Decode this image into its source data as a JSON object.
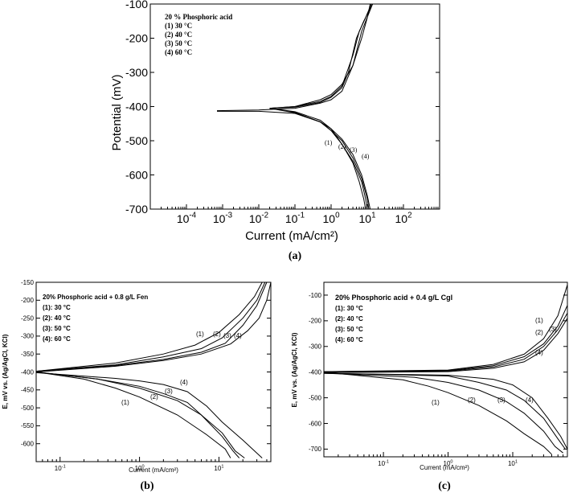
{
  "chart_data": [
    {
      "panel": "(a)",
      "type": "line",
      "xlabel": "Current (mA/cm²)",
      "ylabel": "Potential (mV)",
      "xscale": "log",
      "xlim": [
        1e-05,
        1000
      ],
      "ylim": [
        -700,
        -100
      ],
      "x_ticks": [
        {
          "v": -4,
          "base": "10",
          "exp": "-4"
        },
        {
          "v": -3,
          "base": "10",
          "exp": "-3"
        },
        {
          "v": -2,
          "base": "10",
          "exp": "-2"
        },
        {
          "v": -1,
          "base": "10",
          "exp": "-1"
        },
        {
          "v": 0,
          "base": "10",
          "exp": "0"
        },
        {
          "v": 1,
          "base": "10",
          "exp": "1"
        },
        {
          "v": 2,
          "base": "10",
          "exp": "2"
        }
      ],
      "y_ticks": [
        "-100",
        "-200",
        "-300",
        "-400",
        "-500",
        "-600",
        "-700"
      ],
      "legend": [
        "20 % Phosphoric acid",
        "(1) 30 °C",
        "(2) 40 °C",
        "(3) 50 °C",
        "(4) 60 °C"
      ],
      "legend_position": "top-left",
      "curve_labels": [
        "(1)",
        "(2)",
        "(3)",
        "(4)"
      ],
      "series": [
        {
          "anodic": [
            [
              0.02,
              -405
            ],
            [
              0.1,
              -400
            ],
            [
              0.5,
              -380
            ],
            [
              1,
              -365
            ],
            [
              2,
              -335
            ],
            [
              4,
              -280
            ],
            [
              7,
              -200
            ],
            [
              10,
              -140
            ],
            [
              12,
              -100
            ]
          ],
          "cathodic": [
            [
              0.02,
              -405
            ],
            [
              0.1,
              -415
            ],
            [
              0.5,
              -440
            ],
            [
              1,
              -465
            ],
            [
              2,
              -510
            ],
            [
              4,
              -565
            ],
            [
              6,
              -620
            ],
            [
              8,
              -670
            ],
            [
              9,
              -700
            ]
          ]
        },
        {
          "anodic": [
            [
              0.02,
              -405
            ],
            [
              0.1,
              -400
            ],
            [
              0.5,
              -385
            ],
            [
              1,
              -370
            ],
            [
              2,
              -340
            ],
            [
              4,
              -250
            ],
            [
              6,
              -180
            ],
            [
              9,
              -140
            ],
            [
              13,
              -100
            ]
          ],
          "cathodic": [
            [
              0.02,
              -405
            ],
            [
              0.1,
              -417
            ],
            [
              0.5,
              -445
            ],
            [
              1,
              -470
            ],
            [
              2,
              -510
            ],
            [
              4,
              -560
            ],
            [
              7,
              -620
            ],
            [
              9,
              -670
            ],
            [
              10,
              -700
            ]
          ]
        },
        {
          "anodic": [
            [
              0.02,
              -405
            ],
            [
              0.1,
              -402
            ],
            [
              0.5,
              -388
            ],
            [
              1,
              -373
            ],
            [
              2,
              -345
            ],
            [
              3,
              -300
            ],
            [
              5,
              -200
            ],
            [
              8,
              -150
            ],
            [
              14,
              -100
            ]
          ],
          "cathodic": [
            [
              0.02,
              -405
            ],
            [
              0.1,
              -418
            ],
            [
              0.5,
              -445
            ],
            [
              1,
              -470
            ],
            [
              2,
              -500
            ],
            [
              4,
              -550
            ],
            [
              7,
              -610
            ],
            [
              10,
              -670
            ],
            [
              11,
              -700
            ]
          ]
        },
        {
          "anodic": [
            [
              0.0007,
              -412
            ],
            [
              0.01,
              -410
            ],
            [
              0.1,
              -405
            ],
            [
              0.5,
              -390
            ],
            [
              1,
              -380
            ],
            [
              2,
              -355
            ],
            [
              4,
              -280
            ],
            [
              7,
              -180
            ],
            [
              14,
              -100
            ]
          ],
          "cathodic": [
            [
              0.0007,
              -414
            ],
            [
              0.01,
              -414
            ],
            [
              0.1,
              -420
            ],
            [
              0.5,
              -445
            ],
            [
              1,
              -465
            ],
            [
              2,
              -495
            ],
            [
              4,
              -540
            ],
            [
              7,
              -600
            ],
            [
              10,
              -660
            ],
            [
              12,
              -700
            ]
          ]
        }
      ]
    },
    {
      "panel": "(b)",
      "type": "line",
      "xlabel": "Current (mA/cm²)",
      "ylabel": "E, mV vs. (Ag/AgCl, KCl)",
      "xscale": "log",
      "xlim": [
        0.05,
        45
      ],
      "ylim": [
        -650,
        -150
      ],
      "x_ticks": [
        {
          "v": -1,
          "base": "10",
          "exp": "-1"
        },
        {
          "v": 0,
          "base": "10",
          "exp": "0"
        },
        {
          "v": 1,
          "base": "10",
          "exp": "1"
        }
      ],
      "y_ticks": [
        "-150",
        "-200",
        "-250",
        "-300",
        "-350",
        "-400",
        "-450",
        "-500",
        "-550",
        "-600"
      ],
      "legend": [
        "20% Phosphoric acid + 0.8 g/L Fen",
        "(1): 30 °C",
        "(2): 40 °C",
        "(3): 50 °C",
        "(4): 60 °C"
      ],
      "legend_position": "top-left",
      "curve_labels": [
        "(1)",
        "(2)",
        "(3)",
        "(4)"
      ],
      "series": [
        {
          "anodic": [
            [
              0.05,
              -398
            ],
            [
              0.5,
              -375
            ],
            [
              2,
              -350
            ],
            [
              5,
              -325
            ],
            [
              10,
              -290
            ],
            [
              18,
              -240
            ],
            [
              28,
              -190
            ],
            [
              35,
              -150
            ]
          ],
          "cathodic": [
            [
              0.05,
              -400
            ],
            [
              0.2,
              -420
            ],
            [
              0.5,
              -445
            ],
            [
              1,
              -470
            ],
            [
              3,
              -520
            ],
            [
              7,
              -575
            ],
            [
              12,
              -615
            ],
            [
              14,
              -640
            ]
          ]
        },
        {
          "anodic": [
            [
              0.05,
              -398
            ],
            [
              0.5,
              -380
            ],
            [
              2,
              -358
            ],
            [
              6,
              -335
            ],
            [
              11,
              -305
            ],
            [
              20,
              -250
            ],
            [
              30,
              -200
            ],
            [
              38,
              -150
            ]
          ],
          "cathodic": [
            [
              0.05,
              -400
            ],
            [
              0.3,
              -420
            ],
            [
              1,
              -445
            ],
            [
              3,
              -480
            ],
            [
              6,
              -520
            ],
            [
              11,
              -580
            ],
            [
              15,
              -620
            ],
            [
              18,
              -640
            ]
          ]
        },
        {
          "anodic": [
            [
              0.05,
              -398
            ],
            [
              0.5,
              -382
            ],
            [
              2,
              -365
            ],
            [
              6,
              -345
            ],
            [
              12,
              -320
            ],
            [
              20,
              -270
            ],
            [
              30,
              -215
            ],
            [
              40,
              -150
            ]
          ],
          "cathodic": [
            [
              0.05,
              -400
            ],
            [
              0.3,
              -420
            ],
            [
              1,
              -440
            ],
            [
              2,
              -460
            ],
            [
              4,
              -485
            ],
            [
              6,
              -520
            ],
            [
              11,
              -570
            ],
            [
              16,
              -620
            ],
            [
              21,
              -640
            ]
          ]
        },
        {
          "anodic": [
            [
              0.05,
              -400
            ],
            [
              0.5,
              -384
            ],
            [
              2,
              -368
            ],
            [
              6,
              -350
            ],
            [
              14,
              -322
            ],
            [
              23,
              -285
            ],
            [
              32,
              -250
            ],
            [
              40,
              -200
            ],
            [
              45,
              -150
            ]
          ],
          "cathodic": [
            [
              0.05,
              -402
            ],
            [
              0.5,
              -418
            ],
            [
              1,
              -425
            ],
            [
              2,
              -435
            ],
            [
              4,
              -455
            ],
            [
              7,
              -495
            ],
            [
              11,
              -540
            ],
            [
              20,
              -590
            ],
            [
              35,
              -640
            ]
          ]
        }
      ]
    },
    {
      "panel": "(c)",
      "type": "line",
      "xlabel": "Current (mA/cm²)",
      "ylabel": "E, mV vs. (Ag/AgCl, KCl)",
      "xscale": "log",
      "xlim": [
        0.012,
        70
      ],
      "ylim": [
        -730,
        -50
      ],
      "x_ticks": [
        {
          "v": -1,
          "base": "10",
          "exp": "-1"
        },
        {
          "v": 0,
          "base": "10",
          "exp": "0"
        },
        {
          "v": 1,
          "base": "10",
          "exp": "1"
        }
      ],
      "y_ticks": [
        "-100",
        "-200",
        "-300",
        "-400",
        "-500",
        "-600",
        "-700"
      ],
      "legend": [
        "20% Phosphoric acid + 0.4 g/L Cgl",
        "(1): 30 °C",
        "(2): 40 °C",
        "(3): 50 °C",
        "(4): 60 °C"
      ],
      "legend_position": "top-left",
      "curve_labels": [
        "(1)",
        "(2)",
        "(3)",
        "(4)"
      ],
      "series": [
        {
          "anodic": [
            [
              0.012,
              -398
            ],
            [
              1,
              -392
            ],
            [
              5,
              -370
            ],
            [
              15,
              -330
            ],
            [
              30,
              -270
            ],
            [
              50,
              -180
            ],
            [
              70,
              -60
            ]
          ],
          "cathodic": [
            [
              0.012,
              -400
            ],
            [
              0.2,
              -430
            ],
            [
              0.5,
              -455
            ],
            [
              1,
              -480
            ],
            [
              3,
              -530
            ],
            [
              8,
              -590
            ],
            [
              15,
              -640
            ],
            [
              30,
              -690
            ],
            [
              40,
              -720
            ]
          ]
        },
        {
          "anodic": [
            [
              0.012,
              -398
            ],
            [
              1,
              -394
            ],
            [
              5,
              -375
            ],
            [
              15,
              -340
            ],
            [
              30,
              -290
            ],
            [
              50,
              -220
            ],
            [
              70,
              -140
            ]
          ],
          "cathodic": [
            [
              0.012,
              -404
            ],
            [
              0.3,
              -420
            ],
            [
              1,
              -440
            ],
            [
              3,
              -470
            ],
            [
              8,
              -515
            ],
            [
              15,
              -560
            ],
            [
              30,
              -630
            ],
            [
              45,
              -690
            ],
            [
              60,
              -715
            ]
          ]
        },
        {
          "anodic": [
            [
              0.012,
              -400
            ],
            [
              1,
              -396
            ],
            [
              5,
              -380
            ],
            [
              15,
              -350
            ],
            [
              30,
              -300
            ],
            [
              50,
              -235
            ],
            [
              70,
              -170
            ]
          ],
          "cathodic": [
            [
              0.012,
              -404
            ],
            [
              1,
              -415
            ],
            [
              3,
              -440
            ],
            [
              8,
              -470
            ],
            [
              15,
              -510
            ],
            [
              30,
              -580
            ],
            [
              50,
              -660
            ],
            [
              65,
              -700
            ]
          ]
        },
        {
          "anodic": [
            [
              0.012,
              -402
            ],
            [
              1,
              -398
            ],
            [
              5,
              -385
            ],
            [
              15,
              -360
            ],
            [
              30,
              -315
            ],
            [
              50,
              -250
            ],
            [
              70,
              -190
            ]
          ],
          "cathodic": [
            [
              0.012,
              -405
            ],
            [
              1,
              -412
            ],
            [
              5,
              -428
            ],
            [
              10,
              -450
            ],
            [
              20,
              -500
            ],
            [
              35,
              -580
            ],
            [
              55,
              -650
            ],
            [
              70,
              -700
            ]
          ]
        }
      ]
    }
  ],
  "captions": [
    "(a)",
    "(b)",
    "(c)"
  ]
}
